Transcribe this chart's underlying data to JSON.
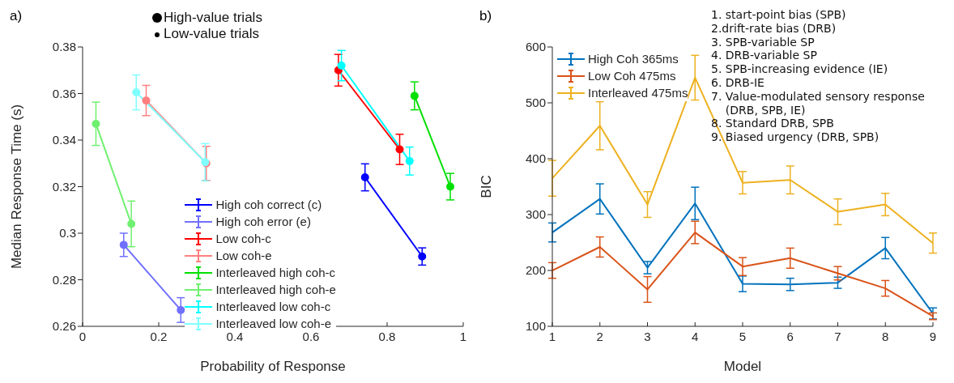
{
  "chart_data": [
    {
      "type": "line",
      "title": "a)",
      "xlabel": "Probability of Response",
      "ylabel": "Median Response Time (s)",
      "xlim": [
        0,
        1
      ],
      "xticks": [
        0,
        0.2,
        0.4,
        0.6,
        0.8,
        1
      ],
      "ylim": [
        0.26,
        0.38
      ],
      "yticks": [
        0.26,
        0.28,
        0.3,
        0.32,
        0.34,
        0.36,
        0.38
      ],
      "grid": false,
      "legend": "bottom",
      "marker": "circle",
      "annotations": [
        "High-value trials",
        "Low-value trials"
      ],
      "series": [
        {
          "name": "High coh correct (c)",
          "color": "#0000ff",
          "x": [
            0.742,
            0.892
          ],
          "values": [
            0.324,
            0.29
          ],
          "errors": [
            0.0058,
            0.0037
          ]
        },
        {
          "name": "High coh error (e)",
          "color": "#7070ff",
          "x": [
            0.108,
            0.258
          ],
          "values": [
            0.295,
            0.267
          ],
          "errors": [
            0.005,
            0.0053
          ]
        },
        {
          "name": "Low coh-c",
          "color": "#ff0000",
          "x": [
            0.672,
            0.833
          ],
          "values": [
            0.37,
            0.336
          ],
          "errors": [
            0.0068,
            0.0065
          ]
        },
        {
          "name": "Low coh-e",
          "color": "#ff8080",
          "x": [
            0.167,
            0.325
          ],
          "values": [
            0.357,
            0.33
          ],
          "errors": [
            0.0065,
            0.0073
          ]
        },
        {
          "name": "Interleaved high coh-c",
          "color": "#00e000",
          "x": [
            0.872,
            0.966
          ],
          "values": [
            0.359,
            0.32
          ],
          "errors": [
            0.006,
            0.0057
          ]
        },
        {
          "name": "Interleaved high coh-e",
          "color": "#70f070",
          "x": [
            0.035,
            0.128
          ],
          "values": [
            0.347,
            0.304
          ],
          "errors": [
            0.0093,
            0.0098
          ]
        },
        {
          "name": "Interleaved low coh-c",
          "color": "#00ffff",
          "x": [
            0.68,
            0.859
          ],
          "values": [
            0.372,
            0.331
          ],
          "errors": [
            0.0065,
            0.006
          ]
        },
        {
          "name": "Interleaved low coh-e",
          "color": "#80ffff",
          "x": [
            0.141,
            0.322
          ],
          "values": [
            0.3605,
            0.3305
          ],
          "errors": [
            0.0075,
            0.008
          ]
        }
      ]
    },
    {
      "type": "line",
      "title": "b)",
      "xlabel": "Model",
      "ylabel": "BIC",
      "xlim": [
        1,
        9
      ],
      "xticks": [
        1,
        2,
        3,
        4,
        5,
        6,
        7,
        8,
        9
      ],
      "ylim": [
        100,
        600
      ],
      "yticks": [
        100,
        200,
        300,
        400,
        500,
        600
      ],
      "grid": false,
      "legend": "top left",
      "annotations": [
        "1. start-point bias (SPB)",
        "2.drift-rate bias (DRB)",
        "3. SPB-variable SP",
        "4. DRB-variable SP",
        "5. SPB-increasing evidence (IE)",
        "6. DRB-IE",
        "7. Value-modulated sensory response\n    (DRB, SPB, IE)",
        "8. Standard DRB, SPB",
        "9. Biased urgency (DRB, SPB)"
      ],
      "series": [
        {
          "name": "High Coh 365ms",
          "color": "#0072bd",
          "x": [
            1,
            2,
            3,
            4,
            5,
            6,
            7,
            8,
            9
          ],
          "values": [
            268,
            328,
            205,
            320,
            176,
            175,
            178,
            240,
            123
          ],
          "errors": [
            17,
            27,
            11,
            29,
            14,
            11,
            10,
            19,
            10
          ]
        },
        {
          "name": "Low Coh 475ms",
          "color": "#d95319",
          "x": [
            1,
            2,
            3,
            4,
            5,
            6,
            7,
            8,
            9
          ],
          "values": [
            200,
            242,
            166,
            268,
            207,
            222,
            195,
            168,
            118
          ],
          "errors": [
            14,
            18,
            23,
            20,
            16,
            18,
            12,
            14,
            6
          ]
        },
        {
          "name": "Interleaved 475ms",
          "color": "#edb120",
          "x": [
            1,
            2,
            3,
            4,
            5,
            6,
            7,
            8,
            9
          ],
          "values": [
            365,
            459,
            318,
            545,
            357,
            362,
            305,
            318,
            249
          ],
          "errors": [
            32,
            43,
            23,
            40,
            20,
            25,
            23,
            20,
            18
          ]
        }
      ]
    }
  ]
}
